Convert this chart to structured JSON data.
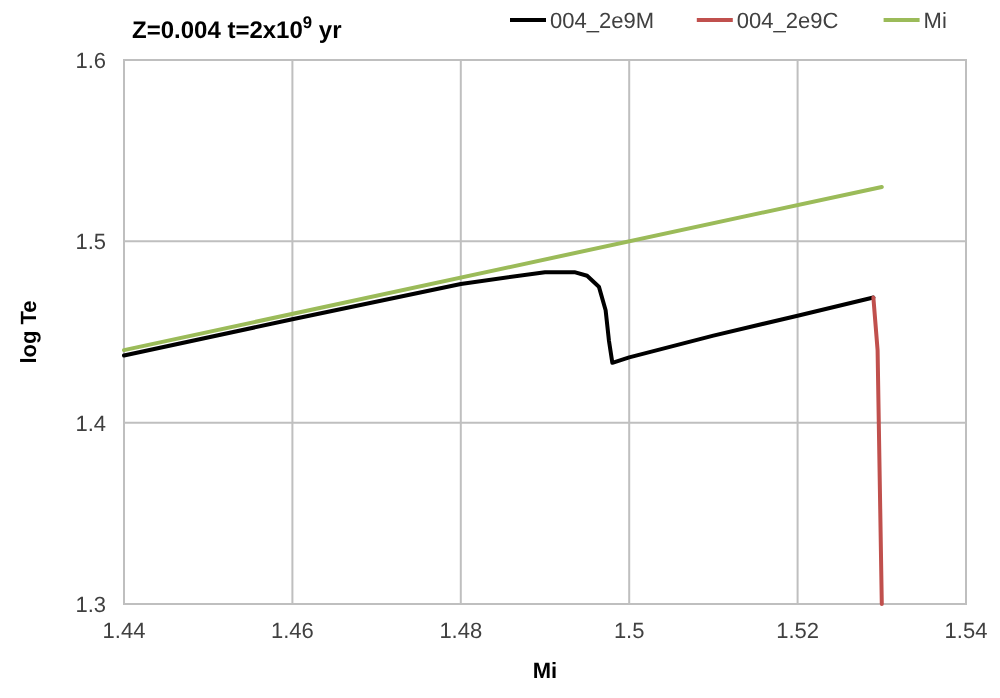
{
  "chart_data": {
    "type": "line",
    "title": "Z=0.004 t=2x10$^{9}$ yr",
    "xlabel": "Mi",
    "ylabel": "log Te",
    "xlim": [
      1.44,
      1.54
    ],
    "xticks": [
      1.44,
      1.46,
      1.48,
      {
        "value": 1.5,
        "label": "1.5"
      },
      1.52,
      1.54
    ],
    "ylim": [
      1.3,
      1.6
    ],
    "yticks": [
      1.3,
      1.4,
      1.5,
      1.6
    ],
    "grid": true,
    "legend": "top",
    "marker": "none",
    "line_style": "solid",
    "series": [
      {
        "name": "004_2e9M",
        "color": "#000000",
        "x": [
          1.44,
          1.46,
          1.48,
          1.49,
          1.4935,
          1.495,
          1.4964,
          1.4972,
          1.4976,
          1.498,
          1.5,
          1.51,
          1.52,
          1.529
        ],
        "values": [
          1.437,
          1.457,
          1.4765,
          1.483,
          1.483,
          1.481,
          1.475,
          1.462,
          1.445,
          1.433,
          1.436,
          1.448,
          1.459,
          1.469
        ]
      },
      {
        "name": "004_2e9C",
        "color": "#c0504d",
        "x": [
          1.529,
          1.5295,
          1.53
        ],
        "values": [
          1.469,
          1.44,
          1.3
        ]
      },
      {
        "name": "Mi",
        "color": "#9bbb59",
        "x": [
          1.44,
          1.53
        ],
        "values": [
          1.44,
          1.53
        ]
      }
    ]
  }
}
